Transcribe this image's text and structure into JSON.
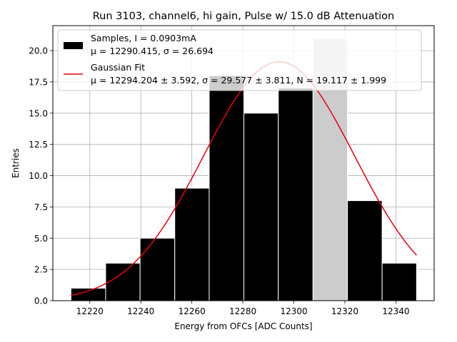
{
  "chart_data": {
    "type": "bar",
    "title": "Run 3103, channel6, hi gain, Pulse w/ 15.0 dB Attenuation",
    "xlabel": "Energy from OFCs [ADC Counts]",
    "ylabel": "Entries",
    "xlim": [
      12205.5,
      12355
    ],
    "ylim": [
      0,
      22
    ],
    "xticks": [
      "12220",
      "12240",
      "12260",
      "12280",
      "12300",
      "12320",
      "12340"
    ],
    "yticks": [
      "0.0",
      "2.5",
      "5.0",
      "7.5",
      "10.0",
      "12.5",
      "15.0",
      "17.5",
      "20.0"
    ],
    "grid": true,
    "legend_position": "top",
    "bins": [
      {
        "left": 12212.6,
        "right": 12226.2,
        "count": 1
      },
      {
        "left": 12226.2,
        "right": 12239.7,
        "count": 3
      },
      {
        "left": 12239.7,
        "right": 12253.3,
        "count": 5
      },
      {
        "left": 12253.3,
        "right": 12266.8,
        "count": 9
      },
      {
        "left": 12266.8,
        "right": 12280.4,
        "count": 18
      },
      {
        "left": 12280.4,
        "right": 12293.9,
        "count": 15
      },
      {
        "left": 12293.9,
        "right": 12307.5,
        "count": 17
      },
      {
        "left": 12307.5,
        "right": 12321.0,
        "count": 21
      },
      {
        "left": 12321.0,
        "right": 12334.6,
        "count": 8
      },
      {
        "left": 12334.6,
        "right": 12348.1,
        "count": 3
      }
    ],
    "series": [
      {
        "name": "Samples, I = 0.0903mA",
        "stats": "μ = 12290.415, σ = 26.694",
        "color": "#000000",
        "highlight_color": "#cccccc"
      },
      {
        "name": "Gaussian Fit",
        "stats": "μ = 12294.204 ± 3.592, σ = 29.577 ± 3.811, N = 19.117 ± 1.999",
        "color": "#e8000b",
        "mu": 12294.204,
        "sigma": 29.577,
        "amplitude": 19.117,
        "x_range": [
          12212.6,
          12348.1
        ]
      }
    ]
  }
}
